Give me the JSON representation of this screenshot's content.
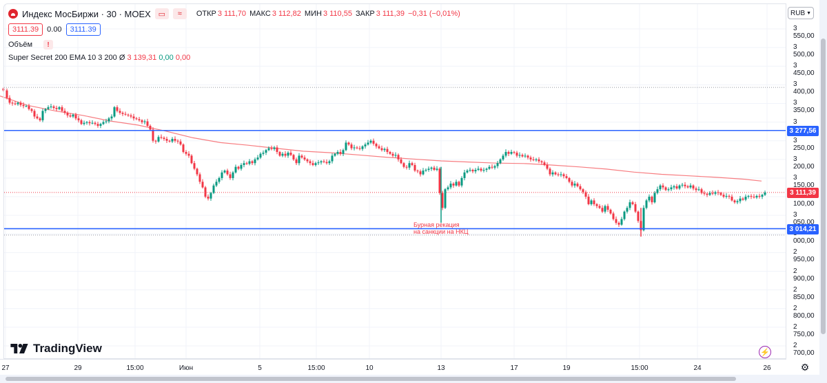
{
  "header": {
    "title": "Индекс МосБиржи · 30 · MOEX",
    "chart_icon": "waves-icon",
    "ohlc": {
      "open_label": "ОТКР",
      "open": "3 111,70",
      "high_label": "МАКС",
      "high": "3 112,82",
      "low_label": "МИН",
      "low": "3 110,55",
      "close_label": "ЗАКР",
      "close": "3 111,39",
      "change": "−0,31 (−0,01%)"
    }
  },
  "price_boxes": {
    "bid": "3111.39",
    "spread": "0.00",
    "ask": "3111.39"
  },
  "volume": {
    "label": "Объём",
    "warning": "!"
  },
  "indicator": {
    "name": "Super Secret 200 EMA 10 3 200",
    "symbol": "Ø",
    "v1": "3 139,31",
    "v2": "0,00",
    "v3": "0,00"
  },
  "currency": "RUB",
  "price_labels": {
    "upper": "3 277,56",
    "current": "3 111,39",
    "lower": "3 014,21"
  },
  "annotation": [
    "Бурная рекация",
    "на санкции на НКЦ"
  ],
  "logo": "TradingView",
  "colors": {
    "up": "#089981",
    "down": "#f23645",
    "ema": "#f77c80",
    "level": "#2962ff",
    "grid": "#f0f3fa"
  },
  "chart_data": {
    "type": "candlestick",
    "y_ticks": [
      "3 550,00",
      "3 500,00",
      "3 450,00",
      "3 400,00",
      "3 350,00",
      "3 300,00",
      "3 250,00",
      "3 200,00",
      "3 150,00",
      "3 100,00",
      "3 050,00",
      "3 000,00",
      "2 950,00",
      "2 900,00",
      "2 850,00",
      "2 800,00",
      "2 750,00",
      "2 700,00"
    ],
    "x_ticks": [
      "27",
      "29",
      "15:00",
      "Июн",
      "5",
      "15:00",
      "10",
      "13",
      "17",
      "19",
      "15:00",
      "24",
      "26"
    ],
    "ylim": [
      2680,
      3570
    ],
    "horizontal_levels": [
      3277.56,
      3014.21
    ],
    "dotted_levels": [
      3393,
      2997
    ],
    "current_price": 3111.39,
    "ema_points": [
      [
        0,
        3370
      ],
      [
        40,
        3345
      ],
      [
        80,
        3330
      ],
      [
        120,
        3318
      ],
      [
        160,
        3303
      ],
      [
        200,
        3292
      ],
      [
        240,
        3276
      ],
      [
        280,
        3258
      ],
      [
        320,
        3245
      ],
      [
        360,
        3238
      ],
      [
        400,
        3230
      ],
      [
        440,
        3222
      ],
      [
        480,
        3218
      ],
      [
        520,
        3212
      ],
      [
        560,
        3206
      ],
      [
        600,
        3201
      ],
      [
        640,
        3196
      ],
      [
        680,
        3193
      ],
      [
        720,
        3190
      ],
      [
        760,
        3189
      ],
      [
        800,
        3185
      ],
      [
        840,
        3180
      ],
      [
        880,
        3174
      ],
      [
        920,
        3166
      ],
      [
        960,
        3160
      ],
      [
        1000,
        3156
      ],
      [
        1040,
        3152
      ],
      [
        1080,
        3147
      ],
      [
        1105,
        3142
      ]
    ],
    "series_close": [
      [
        5,
        3385
      ],
      [
        10,
        3365
      ],
      [
        14,
        3352
      ],
      [
        18,
        3350
      ],
      [
        22,
        3348
      ],
      [
        26,
        3352
      ],
      [
        30,
        3346
      ],
      [
        34,
        3343
      ],
      [
        38,
        3343
      ],
      [
        42,
        3335
      ],
      [
        46,
        3330
      ],
      [
        50,
        3315
      ],
      [
        54,
        3310
      ],
      [
        58,
        3305
      ],
      [
        62,
        3330
      ],
      [
        66,
        3335
      ],
      [
        70,
        3340
      ],
      [
        74,
        3342
      ],
      [
        78,
        3338
      ],
      [
        82,
        3335
      ],
      [
        86,
        3340
      ],
      [
        90,
        3330
      ],
      [
        94,
        3325
      ],
      [
        98,
        3318
      ],
      [
        102,
        3315
      ],
      [
        106,
        3320
      ],
      [
        110,
        3310
      ],
      [
        114,
        3305
      ],
      [
        118,
        3295
      ],
      [
        122,
        3298
      ],
      [
        126,
        3300
      ],
      [
        130,
        3297
      ],
      [
        134,
        3298
      ],
      [
        138,
        3295
      ],
      [
        142,
        3290
      ],
      [
        146,
        3295
      ],
      [
        150,
        3300
      ],
      [
        154,
        3302
      ],
      [
        158,
        3310
      ],
      [
        162,
        3315
      ],
      [
        166,
        3340
      ],
      [
        170,
        3330
      ],
      [
        174,
        3325
      ],
      [
        178,
        3322
      ],
      [
        182,
        3320
      ],
      [
        186,
        3318
      ],
      [
        190,
        3315
      ],
      [
        194,
        3310
      ],
      [
        198,
        3308
      ],
      [
        202,
        3305
      ],
      [
        206,
        3300
      ],
      [
        210,
        3302
      ],
      [
        214,
        3290
      ],
      [
        218,
        3280
      ],
      [
        222,
        3250
      ],
      [
        226,
        3248
      ],
      [
        230,
        3260
      ],
      [
        234,
        3258
      ],
      [
        238,
        3255
      ],
      [
        242,
        3250
      ],
      [
        246,
        3248
      ],
      [
        250,
        3255
      ],
      [
        254,
        3250
      ],
      [
        258,
        3248
      ],
      [
        262,
        3240
      ],
      [
        266,
        3220
      ],
      [
        270,
        3215
      ],
      [
        274,
        3210
      ],
      [
        278,
        3190
      ],
      [
        282,
        3175
      ],
      [
        286,
        3160
      ],
      [
        290,
        3140
      ],
      [
        294,
        3125
      ],
      [
        298,
        3100
      ],
      [
        302,
        3095
      ],
      [
        306,
        3110
      ],
      [
        310,
        3130
      ],
      [
        314,
        3140
      ],
      [
        318,
        3150
      ],
      [
        322,
        3165
      ],
      [
        326,
        3170
      ],
      [
        330,
        3160
      ],
      [
        334,
        3150
      ],
      [
        338,
        3165
      ],
      [
        342,
        3180
      ],
      [
        346,
        3175
      ],
      [
        350,
        3185
      ],
      [
        354,
        3190
      ],
      [
        358,
        3188
      ],
      [
        362,
        3195
      ],
      [
        366,
        3190
      ],
      [
        370,
        3200
      ],
      [
        374,
        3205
      ],
      [
        378,
        3215
      ],
      [
        382,
        3218
      ],
      [
        386,
        3225
      ],
      [
        390,
        3230
      ],
      [
        394,
        3228
      ],
      [
        398,
        3232
      ],
      [
        402,
        3220
      ],
      [
        406,
        3210
      ],
      [
        410,
        3215
      ],
      [
        414,
        3210
      ],
      [
        418,
        3218
      ],
      [
        422,
        3212
      ],
      [
        426,
        3200
      ],
      [
        430,
        3190
      ],
      [
        434,
        3210
      ],
      [
        438,
        3205
      ],
      [
        442,
        3200
      ],
      [
        446,
        3195
      ],
      [
        450,
        3190
      ],
      [
        454,
        3185
      ],
      [
        458,
        3190
      ],
      [
        462,
        3192
      ],
      [
        466,
        3195
      ],
      [
        470,
        3193
      ],
      [
        474,
        3190
      ],
      [
        478,
        3195
      ],
      [
        482,
        3210
      ],
      [
        486,
        3215
      ],
      [
        490,
        3220
      ],
      [
        494,
        3215
      ],
      [
        498,
        3225
      ],
      [
        502,
        3245
      ],
      [
        506,
        3240
      ],
      [
        510,
        3230
      ],
      [
        514,
        3232
      ],
      [
        518,
        3230
      ],
      [
        522,
        3228
      ],
      [
        526,
        3235
      ],
      [
        530,
        3240
      ],
      [
        534,
        3245
      ],
      [
        538,
        3250
      ],
      [
        542,
        3242
      ],
      [
        546,
        3235
      ],
      [
        550,
        3230
      ],
      [
        554,
        3225
      ],
      [
        558,
        3228
      ],
      [
        562,
        3220
      ],
      [
        566,
        3215
      ],
      [
        570,
        3210
      ],
      [
        574,
        3212
      ],
      [
        578,
        3200
      ],
      [
        582,
        3190
      ],
      [
        586,
        3180
      ],
      [
        590,
        3178
      ],
      [
        594,
        3190
      ],
      [
        598,
        3185
      ],
      [
        602,
        3170
      ],
      [
        606,
        3168
      ],
      [
        610,
        3160
      ],
      [
        614,
        3170
      ],
      [
        618,
        3172
      ],
      [
        622,
        3175
      ],
      [
        626,
        3178
      ],
      [
        630,
        3172
      ],
      [
        634,
        3175
      ],
      [
        638,
        3110
      ],
      [
        642,
        3070
      ],
      [
        646,
        3120
      ],
      [
        650,
        3125
      ],
      [
        654,
        3135
      ],
      [
        658,
        3130
      ],
      [
        662,
        3140
      ],
      [
        666,
        3130
      ],
      [
        670,
        3150
      ],
      [
        674,
        3165
      ],
      [
        678,
        3170
      ],
      [
        682,
        3172
      ],
      [
        686,
        3168
      ],
      [
        690,
        3172
      ],
      [
        694,
        3175
      ],
      [
        698,
        3170
      ],
      [
        702,
        3172
      ],
      [
        706,
        3175
      ],
      [
        710,
        3180
      ],
      [
        714,
        3178
      ],
      [
        718,
        3182
      ],
      [
        722,
        3190
      ],
      [
        726,
        3200
      ],
      [
        730,
        3210
      ],
      [
        734,
        3220
      ],
      [
        738,
        3215
      ],
      [
        742,
        3220
      ],
      [
        746,
        3218
      ],
      [
        750,
        3210
      ],
      [
        754,
        3212
      ],
      [
        758,
        3208
      ],
      [
        762,
        3210
      ],
      [
        766,
        3205
      ],
      [
        770,
        3200
      ],
      [
        774,
        3198
      ],
      [
        778,
        3200
      ],
      [
        782,
        3195
      ],
      [
        786,
        3192
      ],
      [
        790,
        3185
      ],
      [
        794,
        3175
      ],
      [
        798,
        3160
      ],
      [
        802,
        3165
      ],
      [
        806,
        3160
      ],
      [
        810,
        3158
      ],
      [
        814,
        3160
      ],
      [
        818,
        3155
      ],
      [
        822,
        3150
      ],
      [
        826,
        3140
      ],
      [
        830,
        3130
      ],
      [
        834,
        3135
      ],
      [
        838,
        3128
      ],
      [
        842,
        3120
      ],
      [
        846,
        3112
      ],
      [
        850,
        3100
      ],
      [
        854,
        3080
      ],
      [
        858,
        3090
      ],
      [
        862,
        3080
      ],
      [
        866,
        3075
      ],
      [
        870,
        3070
      ],
      [
        874,
        3060
      ],
      [
        878,
        3075
      ],
      [
        882,
        3065
      ],
      [
        886,
        3055
      ],
      [
        890,
        3040
      ],
      [
        894,
        3030
      ],
      [
        898,
        3025
      ],
      [
        902,
        3040
      ],
      [
        906,
        3060
      ],
      [
        910,
        3070
      ],
      [
        914,
        3085
      ],
      [
        918,
        3080
      ],
      [
        922,
        3060
      ],
      [
        926,
        3035
      ],
      [
        930,
        3010
      ],
      [
        934,
        3070
      ],
      [
        938,
        3090
      ],
      [
        942,
        3100
      ],
      [
        946,
        3085
      ],
      [
        950,
        3110
      ],
      [
        954,
        3120
      ],
      [
        958,
        3130
      ],
      [
        962,
        3125
      ],
      [
        966,
        3118
      ],
      [
        970,
        3120
      ],
      [
        974,
        3125
      ],
      [
        978,
        3128
      ],
      [
        982,
        3122
      ],
      [
        986,
        3130
      ],
      [
        990,
        3132
      ],
      [
        994,
        3128
      ],
      [
        998,
        3125
      ],
      [
        1002,
        3130
      ],
      [
        1006,
        3122
      ],
      [
        1010,
        3118
      ],
      [
        1014,
        3120
      ],
      [
        1018,
        3110
      ],
      [
        1022,
        3108
      ],
      [
        1026,
        3105
      ],
      [
        1030,
        3110
      ],
      [
        1034,
        3108
      ],
      [
        1038,
        3112
      ],
      [
        1042,
        3110
      ],
      [
        1046,
        3105
      ],
      [
        1050,
        3100
      ],
      [
        1054,
        3102
      ],
      [
        1058,
        3100
      ],
      [
        1062,
        3090
      ],
      [
        1066,
        3085
      ],
      [
        1070,
        3088
      ],
      [
        1074,
        3095
      ],
      [
        1078,
        3092
      ],
      [
        1082,
        3100
      ],
      [
        1086,
        3102
      ],
      [
        1090,
        3100
      ],
      [
        1094,
        3098
      ],
      [
        1098,
        3102
      ],
      [
        1102,
        3100
      ],
      [
        1106,
        3105
      ],
      [
        1110,
        3111.39
      ]
    ]
  }
}
